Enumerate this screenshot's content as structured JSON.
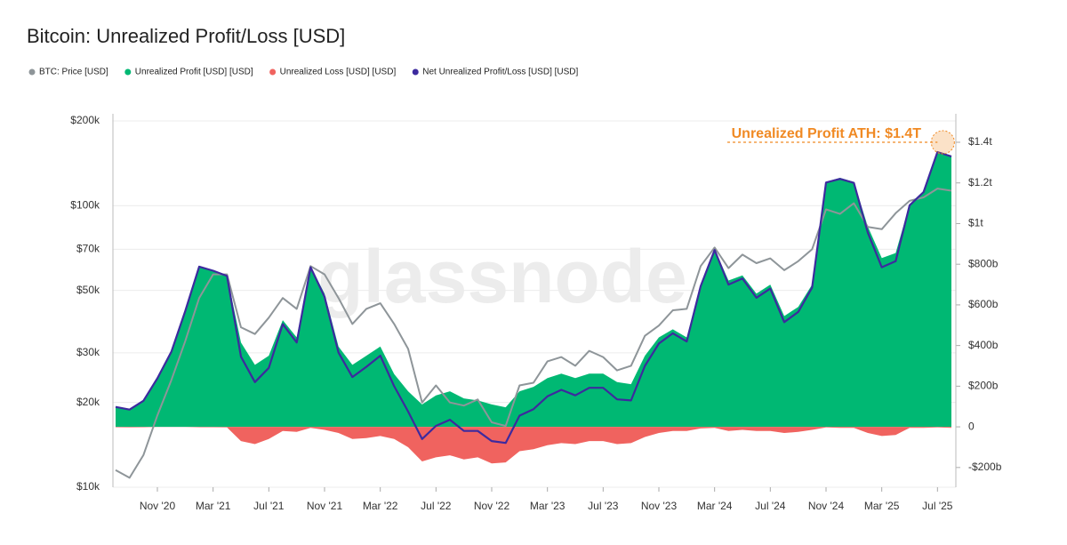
{
  "chart_data": {
    "type": "line",
    "title": "Bitcoin: Unrealized Profit/Loss [USD]",
    "watermark": "glassnode",
    "x": [
      "2020-08",
      "2020-09",
      "2020-10",
      "2020-11",
      "2020-12",
      "2021-01",
      "2021-02",
      "2021-03",
      "2021-04",
      "2021-05",
      "2021-06",
      "2021-07",
      "2021-08",
      "2021-09",
      "2021-10",
      "2021-11",
      "2021-12",
      "2022-01",
      "2022-02",
      "2022-03",
      "2022-04",
      "2022-05",
      "2022-06",
      "2022-07",
      "2022-08",
      "2022-09",
      "2022-10",
      "2022-11",
      "2022-12",
      "2023-01",
      "2023-02",
      "2023-03",
      "2023-04",
      "2023-05",
      "2023-06",
      "2023-07",
      "2023-08",
      "2023-09",
      "2023-10",
      "2023-11",
      "2023-12",
      "2024-01",
      "2024-02",
      "2024-03",
      "2024-04",
      "2024-05",
      "2024-06",
      "2024-07",
      "2024-08",
      "2024-09",
      "2024-10",
      "2024-11",
      "2024-12",
      "2025-01",
      "2025-02",
      "2025-03",
      "2025-04",
      "2025-05",
      "2025-06",
      "2025-07",
      "2025-08"
    ],
    "xticks": [
      {
        "value": "2020-11",
        "label": "Nov '20"
      },
      {
        "value": "2021-03",
        "label": "Mar '21"
      },
      {
        "value": "2021-07",
        "label": "Jul '21"
      },
      {
        "value": "2021-11",
        "label": "Nov '21"
      },
      {
        "value": "2022-03",
        "label": "Mar '22"
      },
      {
        "value": "2022-07",
        "label": "Jul '22"
      },
      {
        "value": "2022-11",
        "label": "Nov '22"
      },
      {
        "value": "2023-03",
        "label": "Mar '23"
      },
      {
        "value": "2023-07",
        "label": "Jul '23"
      },
      {
        "value": "2023-11",
        "label": "Nov '23"
      },
      {
        "value": "2024-03",
        "label": "Mar '24"
      },
      {
        "value": "2024-07",
        "label": "Jul '24"
      },
      {
        "value": "2024-11",
        "label": "Nov '24"
      },
      {
        "value": "2025-03",
        "label": "Mar '25"
      },
      {
        "value": "2025-07",
        "label": "Jul '25"
      }
    ],
    "ylim": [
      10000,
      200000
    ],
    "log_y": true,
    "yticks": [
      {
        "value": 10000,
        "label": "$10k"
      },
      {
        "value": 20000,
        "label": "$20k"
      },
      {
        "value": 30000,
        "label": "$30k"
      },
      {
        "value": 50000,
        "label": "$50k"
      },
      {
        "value": 70000,
        "label": "$70k"
      },
      {
        "value": 100000,
        "label": "$100k"
      },
      {
        "value": 200000,
        "label": "$200k"
      }
    ],
    "y2lim": [
      -297000000000.0,
      1505000000000.0
    ],
    "y2ticks": [
      {
        "value": -200000000000.0,
        "label": "-$200b"
      },
      0,
      {
        "value": 200000000000.0,
        "label": "$200b"
      },
      {
        "value": 400000000000.0,
        "label": "$400b"
      },
      {
        "value": 600000000000.0,
        "label": "$600b"
      },
      {
        "value": 800000000000.0,
        "label": "$800b"
      },
      {
        "value": 1000000000000.0,
        "label": "$1t"
      },
      {
        "value": 1200000000000.0,
        "label": "$1.2t"
      },
      {
        "value": 1400000000000.0,
        "label": "$1.4t"
      }
    ],
    "grid": true,
    "legend": "top-left",
    "series": [
      {
        "name": "BTC: Price [USD]",
        "color": "#8e9599",
        "style": "line",
        "values": [
          11500,
          10800,
          13000,
          18000,
          24000,
          33000,
          47000,
          57000,
          57000,
          37000,
          35000,
          40000,
          47000,
          43000,
          61000,
          57000,
          47000,
          38000,
          43000,
          45000,
          38000,
          31000,
          20000,
          23000,
          20000,
          19500,
          20500,
          17000,
          16500,
          23000,
          23500,
          28000,
          29000,
          27000,
          30500,
          29000,
          26000,
          27000,
          34500,
          37500,
          42500,
          43000,
          61000,
          71000,
          60000,
          67000,
          62500,
          65000,
          59000,
          63500,
          70000,
          97000,
          93500,
          102000,
          84000,
          82500,
          94000,
          104000,
          107000,
          115000,
          113000
        ]
      },
      {
        "name": "Unrealized Profit [USD] [USD]",
        "color": "#00b873",
        "style": "area",
        "axis": "y2",
        "values": [
          100000000000.0,
          88000000000.0,
          130000000000.0,
          240000000000.0,
          370000000000.0,
          570000000000.0,
          790000000000.0,
          770000000000.0,
          745000000000.0,
          415000000000.0,
          305000000000.0,
          350000000000.0,
          525000000000.0,
          440000000000.0,
          790000000000.0,
          655000000000.0,
          395000000000.0,
          305000000000.0,
          350000000000.0,
          395000000000.0,
          260000000000.0,
          175000000000.0,
          110000000000.0,
          155000000000.0,
          175000000000.0,
          140000000000.0,
          130000000000.0,
          110000000000.0,
          96000000000.0,
          175000000000.0,
          197000000000.0,
          240000000000.0,
          262000000000.0,
          240000000000.0,
          262000000000.0,
          262000000000.0,
          220000000000.0,
          210000000000.0,
          350000000000.0,
          440000000000.0,
          480000000000.0,
          440000000000.0,
          700000000000.0,
          875000000000.0,
          720000000000.0,
          745000000000.0,
          655000000000.0,
          700000000000.0,
          545000000000.0,
          590000000000.0,
          700000000000.0,
          1205000000000.0,
          1225000000000.0,
          1205000000000.0,
          985000000000.0,
          830000000000.0,
          855000000000.0,
          1095000000000.0,
          1160000000000.0,
          1355000000000.0,
          1335000000000.0
        ]
      },
      {
        "name": "Unrealized Loss [USD] [USD]",
        "color": "#f0635f",
        "style": "area",
        "axis": "y2",
        "values": [
          -2000000000.0,
          -3000000000.0,
          -2000000000.0,
          -1000000000.0,
          -1000000000.0,
          -1000000000.0,
          -2000000000.0,
          -2000000000.0,
          -3000000000.0,
          -70000000000.0,
          -85000000000.0,
          -60000000000.0,
          -20000000000.0,
          -25000000000.0,
          -5000000000.0,
          -15000000000.0,
          -30000000000.0,
          -60000000000.0,
          -55000000000.0,
          -45000000000.0,
          -60000000000.0,
          -100000000000.0,
          -170000000000.0,
          -150000000000.0,
          -140000000000.0,
          -160000000000.0,
          -150000000000.0,
          -180000000000.0,
          -175000000000.0,
          -120000000000.0,
          -110000000000.0,
          -90000000000.0,
          -80000000000.0,
          -85000000000.0,
          -70000000000.0,
          -70000000000.0,
          -85000000000.0,
          -80000000000.0,
          -50000000000.0,
          -30000000000.0,
          -20000000000.0,
          -20000000000.0,
          -8000000000.0,
          -5000000000.0,
          -20000000000.0,
          -15000000000.0,
          -20000000000.0,
          -20000000000.0,
          -30000000000.0,
          -25000000000.0,
          -15000000000.0,
          -3000000000.0,
          -5000000000.0,
          -5000000000.0,
          -30000000000.0,
          -45000000000.0,
          -40000000000.0,
          -5000000000.0,
          -5000000000.0,
          -3000000000.0,
          -5000000000.0
        ]
      },
      {
        "name": "Net Unrealized Profit/Loss [USD] [USD]",
        "color": "#3d2a9e",
        "style": "line",
        "axis": "y2",
        "values": [
          98000000000.0,
          85000000000.0,
          128000000000.0,
          239000000000.0,
          369000000000.0,
          569000000000.0,
          788000000000.0,
          768000000000.0,
          742000000000.0,
          345000000000.0,
          220000000000.0,
          290000000000.0,
          505000000000.0,
          415000000000.0,
          785000000000.0,
          640000000000.0,
          365000000000.0,
          245000000000.0,
          295000000000.0,
          350000000000.0,
          200000000000.0,
          75000000000.0,
          -60000000000.0,
          5000000000.0,
          35000000000.0,
          -20000000000.0,
          -20000000000.0,
          -70000000000.0,
          -79000000000.0,
          55000000000.0,
          87000000000.0,
          150000000000.0,
          182000000000.0,
          155000000000.0,
          192000000000.0,
          192000000000.0,
          135000000000.0,
          130000000000.0,
          300000000000.0,
          410000000000.0,
          460000000000.0,
          420000000000.0,
          692000000000.0,
          870000000000.0,
          700000000000.0,
          730000000000.0,
          635000000000.0,
          680000000000.0,
          515000000000.0,
          565000000000.0,
          685000000000.0,
          1202000000000.0,
          1220000000000.0,
          1200000000000.0,
          955000000000.0,
          785000000000.0,
          815000000000.0,
          1090000000000.0,
          1155000000000.0,
          1352000000000.0,
          1330000000000.0
        ]
      }
    ],
    "annotation": {
      "text": "Unrealized Profit ATH: $1.4T",
      "value": 1400000000000.0,
      "x": "2025-07",
      "color": "#f08a24"
    }
  }
}
